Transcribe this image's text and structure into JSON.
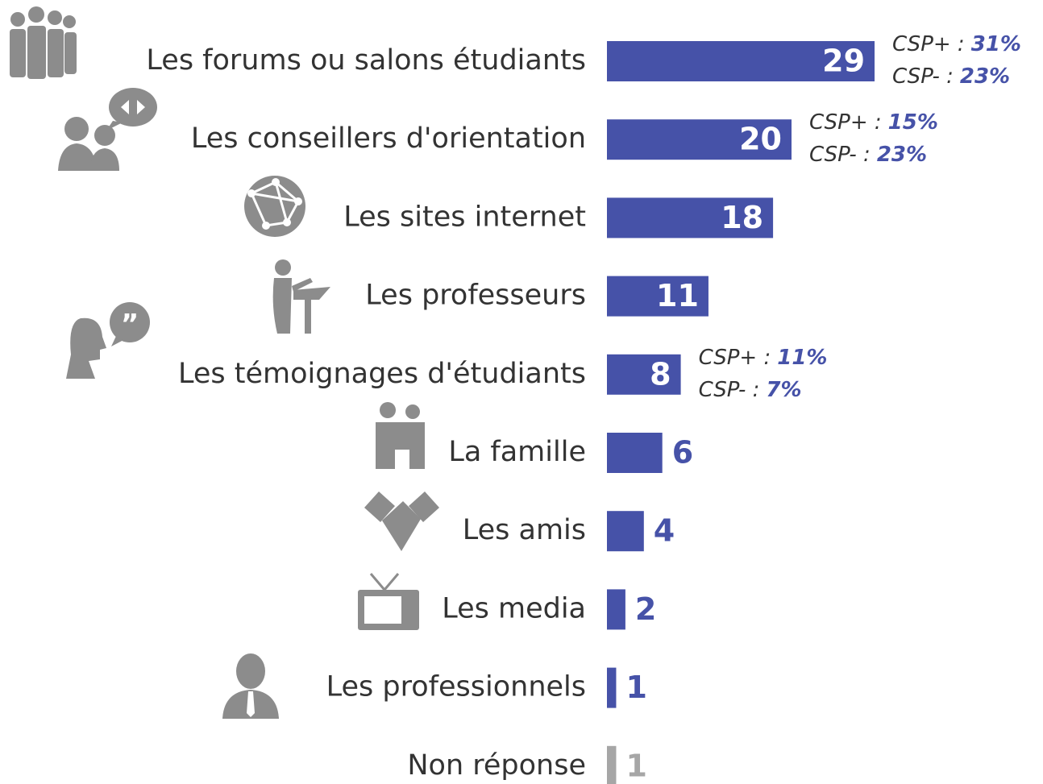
{
  "chart_data": {
    "type": "bar",
    "orientation": "horizontal",
    "categories": [
      "Les forums ou salons étudiants",
      "Les conseillers d'orientation",
      "Les sites internet",
      "Les professeurs",
      "Les témoignages d'étudiants",
      "La famille",
      "Les amis",
      "Les media",
      "Les professionnels",
      "Non réponse"
    ],
    "values": [
      29,
      20,
      18,
      11,
      8,
      6,
      4,
      2,
      1,
      1
    ],
    "colors": [
      "#4652a8",
      "#4652a8",
      "#4652a8",
      "#4652a8",
      "#4652a8",
      "#4652a8",
      "#4652a8",
      "#4652a8",
      "#4652a8",
      "#a6a6a6"
    ],
    "csp_plus": {
      "label": "CSP+ :",
      "values": [
        31,
        15,
        null,
        null,
        11,
        null,
        null,
        null,
        null,
        null
      ],
      "value_labels": [
        "31%",
        "15%",
        null,
        null,
        "11%",
        null,
        null,
        null,
        null,
        null
      ]
    },
    "csp_minus": {
      "label": "CSP- :",
      "values": [
        23,
        23,
        null,
        null,
        7,
        null,
        null,
        null,
        null,
        null
      ],
      "value_labels": [
        "23%",
        "23%",
        null,
        null,
        "7%",
        null,
        null,
        null,
        null,
        null
      ]
    }
  }
}
